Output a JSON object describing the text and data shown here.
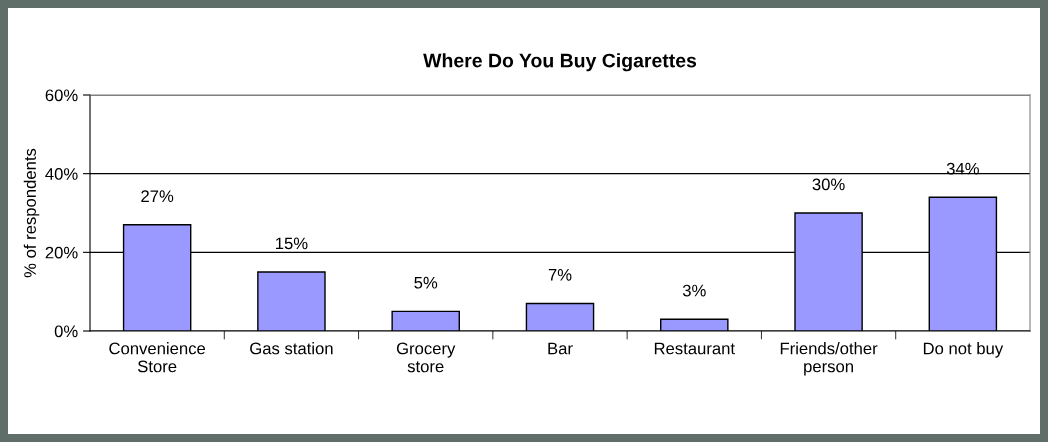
{
  "chart_data": {
    "type": "bar",
    "title": "Where Do You Buy Cigarettes",
    "ylabel": "% of respondents",
    "categories": [
      "Convenience\nStore",
      "Gas station",
      "Grocery\nstore",
      "Bar",
      "Restaurant",
      "Friends/other\nperson",
      "Do not buy"
    ],
    "values": [
      27,
      15,
      5,
      7,
      3,
      30,
      34
    ],
    "value_labels": [
      "27%",
      "15%",
      "5%",
      "7%",
      "3%",
      "30%",
      "34%"
    ],
    "color": "#9999ff",
    "ylim": [
      0,
      60
    ],
    "yticks": [
      {
        "value": 0,
        "label": "0%"
      },
      {
        "value": 20,
        "label": "20%"
      },
      {
        "value": 40,
        "label": "40%"
      },
      {
        "value": 60,
        "label": "60%"
      }
    ],
    "grid": "y",
    "legend": false
  }
}
